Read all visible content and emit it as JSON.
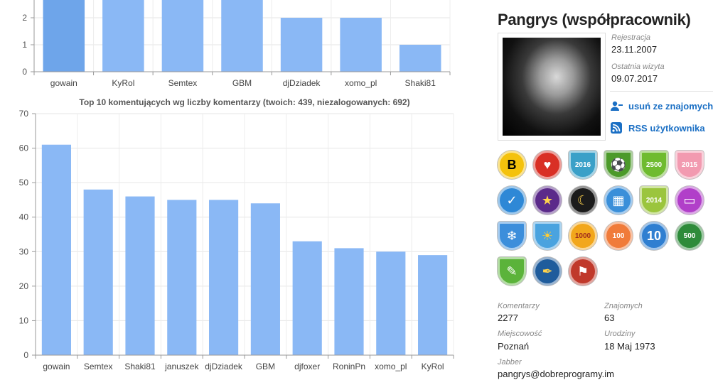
{
  "chart_data": [
    {
      "type": "bar",
      "title": "",
      "categories": [
        "gowain",
        "KyRol",
        "Semtex",
        "GBM",
        "djDziadek",
        "xomo_pl",
        "Shaki81"
      ],
      "values": [
        3,
        3,
        3,
        3,
        2,
        2,
        1
      ],
      "highlight_index": 0,
      "y_ticks": [
        0,
        1,
        2
      ],
      "ylim": [
        0,
        3
      ],
      "grid": true,
      "color": "#8ab8f5",
      "highlight_color": "#6ea5ea"
    },
    {
      "type": "bar",
      "title": "Top 10 komentujących wg liczby komentarzy (twoich: 439, niezalogowanych: 692)",
      "categories": [
        "gowain",
        "Semtex",
        "Shaki81",
        "januszek",
        "djDziadek",
        "GBM",
        "djfoxer",
        "RoninPn",
        "xomo_pl",
        "KyRol"
      ],
      "values": [
        61,
        48,
        46,
        45,
        45,
        44,
        33,
        31,
        30,
        29
      ],
      "y_ticks": [
        0,
        10,
        20,
        30,
        40,
        50,
        60,
        70
      ],
      "ylim": [
        0,
        70
      ],
      "grid": true,
      "color": "#8ab8f5"
    }
  ],
  "profile": {
    "name": "Pangrys (współpracownik)",
    "registration_label": "Rejestracja",
    "registration_value": "23.11.2007",
    "last_visit_label": "Ostatnia wizyta",
    "last_visit_value": "09.07.2017",
    "remove_friend": "usuń ze znajomych",
    "rss": "RSS użytkownika",
    "badges": [
      {
        "label": "B",
        "color": "#f4c20d",
        "text_color": "#000",
        "icon": "letter-b-badge"
      },
      {
        "label": "♥",
        "color": "#d93025",
        "text_color": "#fff",
        "icon": "heart-badge"
      },
      {
        "label": "2016",
        "color": "#3aa0c8",
        "text_color": "#fff",
        "icon": "year-2016-badge"
      },
      {
        "label": "⚽",
        "color": "#4c9a2a",
        "text_color": "#fff",
        "icon": "football-badge"
      },
      {
        "label": "2500",
        "color": "#6fbb2f",
        "text_color": "#fff",
        "icon": "comments-2500-badge"
      },
      {
        "label": "2015",
        "color": "#f29ab0",
        "text_color": "#fff",
        "icon": "year-2015-badge"
      },
      {
        "label": "✓",
        "color": "#2e88d6",
        "text_color": "#fff",
        "icon": "check-badge"
      },
      {
        "label": "★",
        "color": "#5b2a8a",
        "text_color": "#ffd34d",
        "icon": "stars-badge"
      },
      {
        "label": "☾",
        "color": "#1b1b1b",
        "text_color": "#ffd34d",
        "icon": "moon-badge"
      },
      {
        "label": "▦",
        "color": "#3a8fd9",
        "text_color": "#fff",
        "icon": "network-badge"
      },
      {
        "label": "2014",
        "color": "#9bc53d",
        "text_color": "#fff",
        "icon": "year-2014-badge"
      },
      {
        "label": "▭",
        "color": "#b13fc9",
        "text_color": "#fff",
        "icon": "message-badge"
      },
      {
        "label": "❄",
        "color": "#3c8edb",
        "text_color": "#fff",
        "icon": "snowflake-badge"
      },
      {
        "label": "☀",
        "color": "#4aa3df",
        "text_color": "#ffcc33",
        "icon": "sun-badge"
      },
      {
        "label": "1000",
        "color": "#f2a71c",
        "text_color": "#a02b1c",
        "icon": "comments-1000-badge"
      },
      {
        "label": "100",
        "color": "#f07b3a",
        "text_color": "#fff",
        "icon": "comments-100-badge"
      },
      {
        "label": "10",
        "color": "#2f7fd1",
        "text_color": "#fff",
        "icon": "comments-10-badge"
      },
      {
        "label": "500",
        "color": "#2e8b3a",
        "text_color": "#fff",
        "icon": "posts-500-badge"
      },
      {
        "label": "✎",
        "color": "#5bb33a",
        "text_color": "#fff",
        "icon": "pencil-shield-badge"
      },
      {
        "label": "✒",
        "color": "#1f5c9c",
        "text_color": "#ffd34d",
        "icon": "pen-nib-badge"
      },
      {
        "label": "⚑",
        "color": "#c0392b",
        "text_color": "#fff",
        "icon": "flag-badge"
      }
    ],
    "stats": {
      "comments_label": "Komentarzy",
      "comments_value": "2277",
      "friends_label": "Znajomych",
      "friends_value": "63",
      "city_label": "Miejscowość",
      "city_value": "Poznań",
      "birthday_label": "Urodziny",
      "birthday_value": "18 Maj 1973",
      "jabber_label": "Jabber",
      "jabber_value": "pangrys@dobreprogramy.im"
    }
  }
}
